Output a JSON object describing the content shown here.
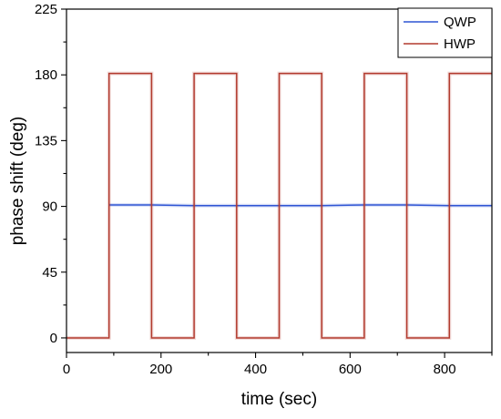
{
  "chart_data": {
    "type": "line",
    "title": "",
    "xlabel": "time (sec)",
    "ylabel": "phase shift (deg)",
    "xlim": [
      0,
      900
    ],
    "ylim": [
      -10,
      225
    ],
    "xticks": [
      0,
      200,
      400,
      600,
      800
    ],
    "yticks": [
      0,
      45,
      90,
      135,
      180,
      225
    ],
    "grid": false,
    "legend": "top-right",
    "series": [
      {
        "name": "QWP",
        "color": "#2f55d4",
        "x": [
          90,
          180,
          270,
          360,
          450,
          540,
          630,
          720,
          810,
          900
        ],
        "y": [
          91,
          91,
          90.5,
          90.5,
          90.5,
          90.5,
          91,
          91,
          90.5,
          90.5
        ]
      },
      {
        "name": "HWP",
        "color": "#b23a2e",
        "x": [
          0,
          90,
          90,
          180,
          180,
          270,
          270,
          360,
          360,
          450,
          450,
          540,
          540,
          630,
          630,
          720,
          720,
          810,
          810,
          900
        ],
        "y": [
          0,
          0,
          181,
          181,
          0,
          0,
          181,
          181,
          0,
          0,
          181,
          181,
          0,
          0,
          181,
          181,
          0,
          0,
          181,
          181
        ]
      }
    ]
  }
}
